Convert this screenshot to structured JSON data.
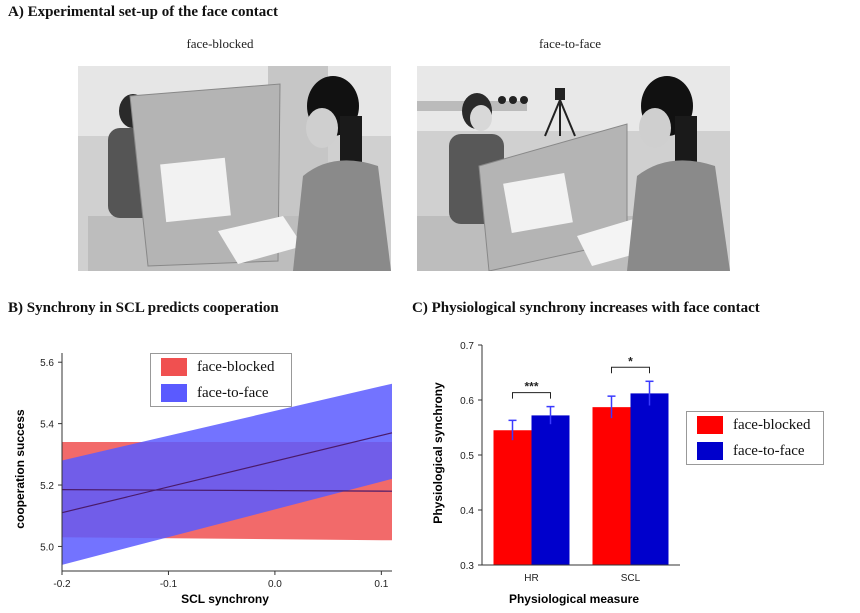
{
  "panel_a": {
    "title": "A) Experimental set-up of the face contact",
    "photos": [
      {
        "label": "face-blocked"
      },
      {
        "label": "face-to-face"
      }
    ]
  },
  "panel_b": {
    "title": "B) Synchrony in SCL predicts cooperation"
  },
  "panel_c": {
    "title": "C) Physiological synchrony increases with face contact"
  },
  "colors": {
    "blocked": "#ff0000",
    "face": "#0000cc",
    "blocked_band": "#f05050",
    "face_band": "#5a5aff"
  },
  "chart_data": [
    {
      "type": "line",
      "title": "",
      "xlabel": "SCL synchrony",
      "ylabel": "cooperation success",
      "xlim": [
        -0.2,
        0.11
      ],
      "ylim": [
        4.92,
        5.63
      ],
      "xticks": [
        -0.2,
        -0.1,
        0.0,
        0.1
      ],
      "xtick_labels": [
        "-0.2",
        "-0.1",
        "0.0",
        "0.1"
      ],
      "yticks": [
        5.0,
        5.2,
        5.4,
        5.6
      ],
      "ytick_labels": [
        "5.0",
        "5.2",
        "5.4",
        "5.6"
      ],
      "legend": "top-left",
      "series": [
        {
          "name": "face-blocked",
          "x": [
            -0.2,
            0.11
          ],
          "y": [
            5.185,
            5.18
          ],
          "lower": [
            5.03,
            5.02
          ],
          "upper": [
            5.34,
            5.34
          ]
        },
        {
          "name": "face-to-face",
          "x": [
            -0.2,
            0.11
          ],
          "y": [
            5.11,
            5.37
          ],
          "lower": [
            4.94,
            5.22
          ],
          "upper": [
            5.28,
            5.53
          ]
        }
      ]
    },
    {
      "type": "bar",
      "title": "",
      "xlabel": "Physiological measure",
      "ylabel": "Physiological synchrony",
      "categories": [
        "HR",
        "SCL"
      ],
      "ylim": [
        0.3,
        0.7
      ],
      "yticks": [
        0.3,
        0.4,
        0.5,
        0.6,
        0.7
      ],
      "ytick_labels": [
        "0.3",
        "0.4",
        "0.5",
        "0.6",
        "0.7"
      ],
      "legend": "right",
      "series": [
        {
          "name": "face-blocked",
          "values": [
            0.545,
            0.587
          ],
          "errors": [
            0.018,
            0.02
          ]
        },
        {
          "name": "face-to-face",
          "values": [
            0.572,
            0.612
          ],
          "errors": [
            0.016,
            0.022
          ]
        }
      ],
      "significance": [
        {
          "category": "HR",
          "label": "***"
        },
        {
          "category": "SCL",
          "label": "*"
        }
      ]
    }
  ]
}
